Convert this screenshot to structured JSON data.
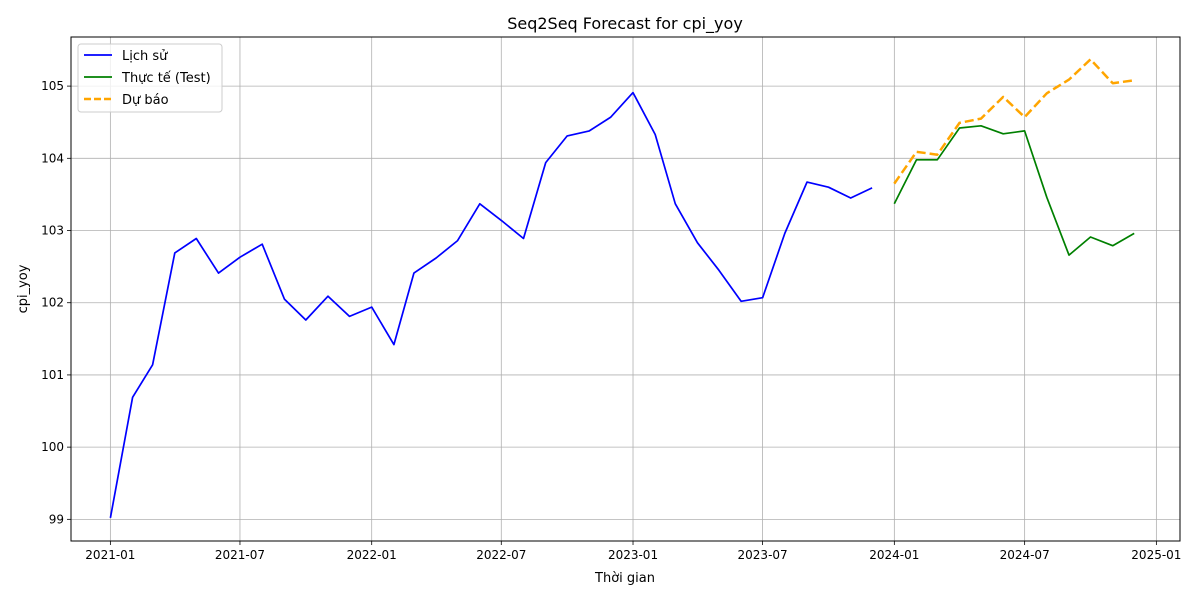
{
  "chart_data": {
    "type": "line",
    "title": "Seq2Seq Forecast for cpi_yoy",
    "xlabel": "Thời gian",
    "ylabel": "cpi_yoy",
    "x_range": [
      "2020-11-07",
      "2025-02-03"
    ],
    "ylim": [
      98.7,
      105.68
    ],
    "x_ticks": [
      "2021-01",
      "2021-07",
      "2022-01",
      "2022-07",
      "2023-01",
      "2023-07",
      "2024-01",
      "2024-07",
      "2025-01"
    ],
    "y_ticks": [
      "99",
      "100",
      "101",
      "102",
      "103",
      "104",
      "105"
    ],
    "grid": true,
    "legend_position": "top-left",
    "series": [
      {
        "name": "Lịch sử",
        "color": "#0000ff",
        "dashed": false,
        "x": [
          "2021-01",
          "2021-02",
          "2021-03",
          "2021-04",
          "2021-05",
          "2021-06",
          "2021-07",
          "2021-08",
          "2021-09",
          "2021-10",
          "2021-11",
          "2021-12",
          "2022-01",
          "2022-02",
          "2022-03",
          "2022-04",
          "2022-05",
          "2022-06",
          "2022-07",
          "2022-08",
          "2022-09",
          "2022-10",
          "2022-11",
          "2022-12",
          "2023-01",
          "2023-02",
          "2023-03",
          "2023-04",
          "2023-05",
          "2023-06",
          "2023-07",
          "2023-08",
          "2023-09",
          "2023-10",
          "2023-11",
          "2023-12"
        ],
        "values": [
          99.02,
          100.69,
          101.14,
          102.69,
          102.89,
          102.41,
          102.63,
          102.81,
          102.05,
          101.76,
          102.09,
          101.81,
          101.94,
          101.42,
          102.41,
          102.62,
          102.86,
          103.37,
          103.14,
          102.89,
          103.94,
          104.31,
          104.38,
          104.57,
          104.91,
          104.33,
          103.37,
          102.83,
          102.45,
          102.02,
          102.07,
          102.96,
          103.67,
          103.6,
          103.45,
          103.59
        ]
      },
      {
        "name": "Thực tế (Test)",
        "color": "#008000",
        "dashed": false,
        "x": [
          "2024-01",
          "2024-02",
          "2024-03",
          "2024-04",
          "2024-05",
          "2024-06",
          "2024-07",
          "2024-08",
          "2024-09",
          "2024-10",
          "2024-11",
          "2024-12"
        ],
        "values": [
          103.37,
          103.98,
          103.98,
          104.42,
          104.45,
          104.34,
          104.38,
          103.46,
          102.66,
          102.91,
          102.79,
          102.96
        ]
      },
      {
        "name": "Dự báo",
        "color": "#ffa500",
        "dashed": true,
        "x": [
          "2024-01",
          "2024-02",
          "2024-03",
          "2024-04",
          "2024-05",
          "2024-06",
          "2024-07",
          "2024-08",
          "2024-09",
          "2024-10",
          "2024-11",
          "2024-12"
        ],
        "values": [
          103.65,
          104.09,
          104.05,
          104.49,
          104.55,
          104.85,
          104.57,
          104.9,
          105.09,
          105.37,
          105.04,
          105.08
        ]
      }
    ]
  }
}
